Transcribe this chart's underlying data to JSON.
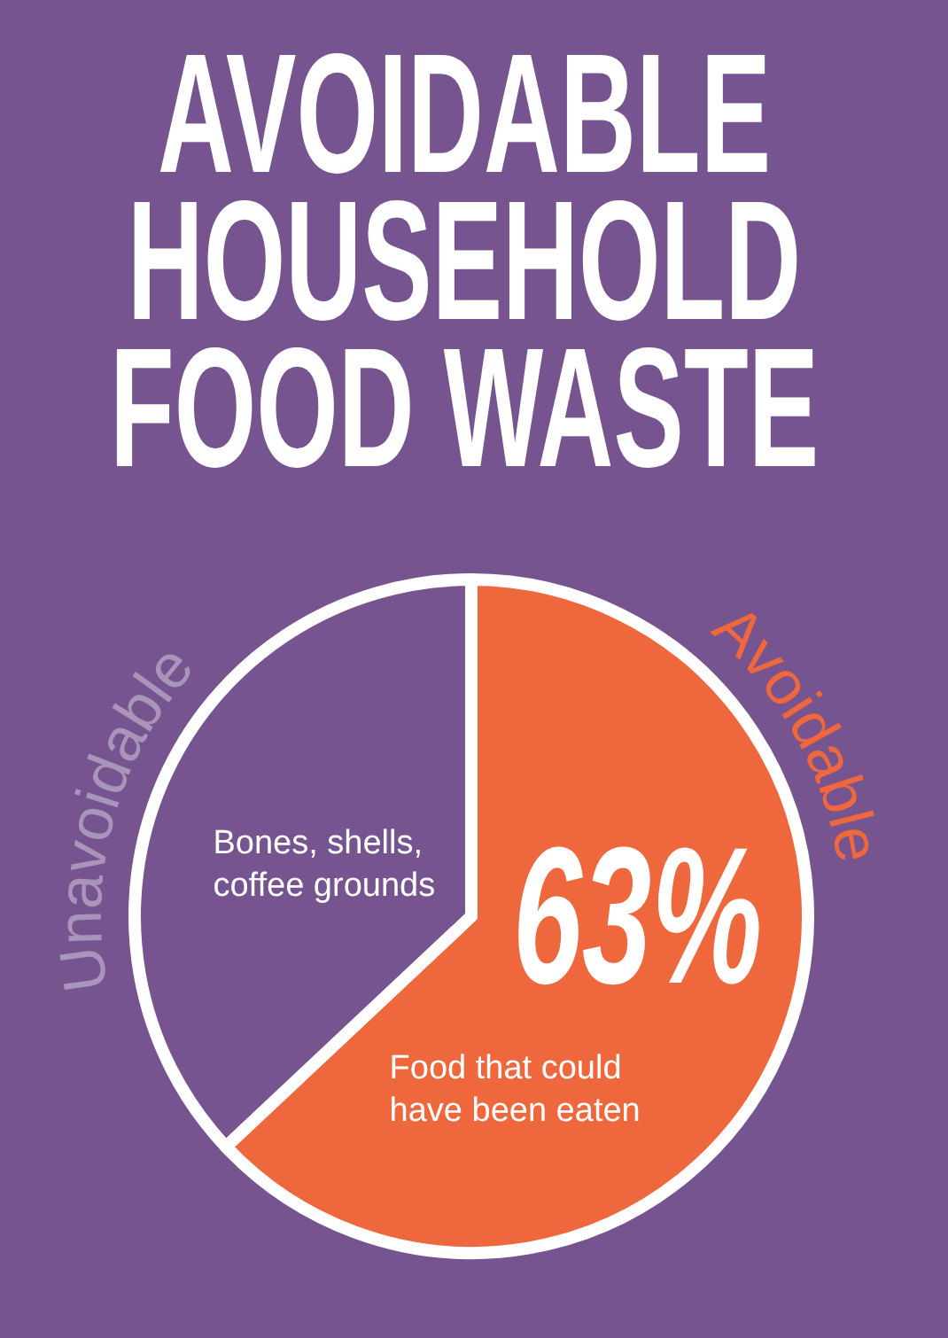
{
  "chart_data": {
    "type": "pie",
    "title": "AVOIDABLE HOUSEHOLD FOOD WASTE",
    "categories": [
      "Avoidable",
      "Unavoidable"
    ],
    "values": [
      63,
      37
    ],
    "colors": [
      "#ef673c",
      "#76548f"
    ],
    "value_labels": [
      "63%",
      null
    ],
    "annotations": [
      "Food that could have been eaten",
      "Bones, shells, coffee grounds"
    ]
  }
}
